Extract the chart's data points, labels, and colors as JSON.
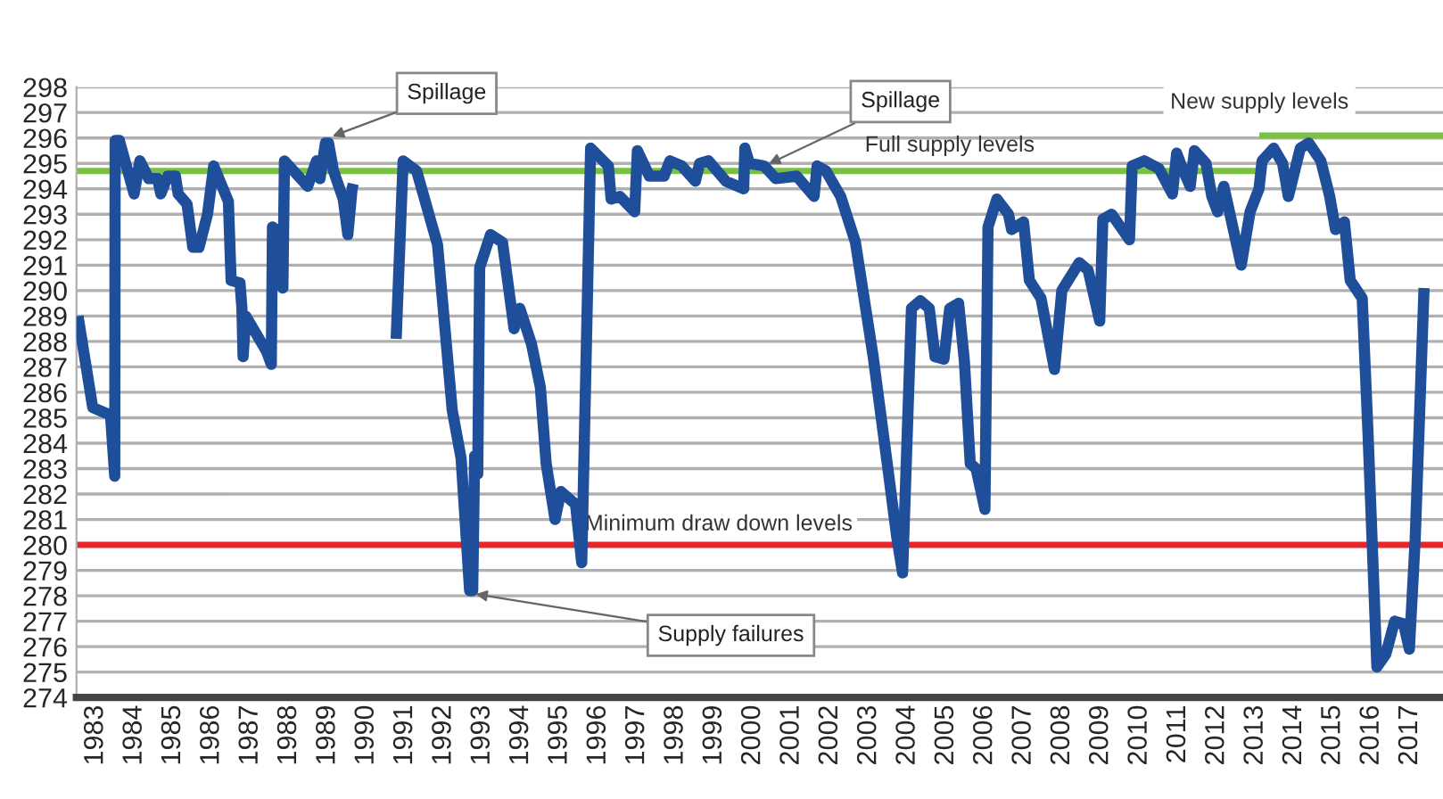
{
  "chart_data": {
    "type": "line",
    "xlim": [
      1982.5,
      2017.85
    ],
    "xticks": [
      1983,
      1984,
      1985,
      1986,
      1987,
      1988,
      1989,
      1990,
      1991,
      1992,
      1993,
      1994,
      1995,
      1996,
      1997,
      1998,
      1999,
      2000,
      2001,
      2002,
      2003,
      2004,
      2005,
      2006,
      2007,
      2008,
      2009,
      2010,
      2011,
      2012,
      2013,
      2014,
      2015,
      2016,
      2017
    ],
    "ylim": [
      274,
      298
    ],
    "yticks": [
      274,
      275,
      276,
      277,
      278,
      279,
      280,
      281,
      282,
      283,
      284,
      285,
      286,
      287,
      288,
      289,
      290,
      291,
      292,
      293,
      294,
      295,
      296,
      297,
      298
    ],
    "grid": "y",
    "legend": false,
    "marker": "none",
    "line_style": "solid",
    "series": [
      {
        "color": "#1f4e9a",
        "x": [
          1982.54,
          1982.92,
          1983.38,
          1983.49,
          1983.5,
          1983.61,
          1983.99,
          1984.14,
          1984.37,
          1984.6,
          1984.68,
          1984.86,
          1985.06,
          1985.13,
          1985.36,
          1985.51,
          1985.67,
          1985.89,
          1986.05,
          1986.43,
          1986.5,
          1986.73,
          1986.78,
          1986.81,
          1986.88,
          1987.42,
          1987.54,
          1987.57,
          1987.75,
          1987.84,
          1987.88,
          1988.48,
          1988.71,
          1988.8,
          1988.94,
          1989.02,
          1989.15,
          1989.4,
          1989.52,
          1989.63,
          1989.66,
          1990.2,
          1990.77,
          1990.95,
          1991.3,
          1991.84,
          1992.22,
          1992.45,
          1992.67,
          1992.75,
          1992.8,
          1992.88,
          1992.93,
          1993.21,
          1993.52,
          1993.82,
          1993.97,
          1994.27,
          1994.5,
          1994.65,
          1994.88,
          1995.03,
          1995.41,
          1995.57,
          1995.8,
          1996.26,
          1996.33,
          1996.56,
          1996.94,
          1997.01,
          1997.32,
          1997.7,
          1997.85,
          1998.16,
          1998.51,
          1998.62,
          1998.85,
          1999.3,
          1999.76,
          1999.79,
          1999.91,
          2000.29,
          2000.59,
          2001.13,
          2001.58,
          2001.66,
          2001.89,
          2002.27,
          2002.65,
          2003.11,
          2003.49,
          2003.72,
          2003.87,
          2004.1,
          2004.33,
          2004.56,
          2004.71,
          2004.94,
          2005.09,
          2005.32,
          2005.47,
          2005.62,
          2005.77,
          2006.0,
          2006.08,
          2006.31,
          2006.61,
          2006.69,
          2007.0,
          2007.15,
          2007.45,
          2007.8,
          2007.99,
          2008.44,
          2008.67,
          2008.97,
          2009.05,
          2009.28,
          2009.51,
          2009.74,
          2009.81,
          2010.12,
          2010.5,
          2010.85,
          2010.96,
          2011.11,
          2011.31,
          2011.42,
          2011.72,
          2011.87,
          2012.02,
          2012.18,
          2012.63,
          2012.86,
          2013.09,
          2013.17,
          2013.47,
          2013.7,
          2013.85,
          2014.16,
          2014.38,
          2014.69,
          2014.92,
          2015.07,
          2015.3,
          2015.45,
          2015.76,
          2015.91,
          2016.14,
          2016.37,
          2016.6,
          2016.83,
          2016.98,
          2017.13,
          2017.36
        ],
        "values": [
          289.0,
          285.4,
          285.1,
          282.7,
          295.9,
          295.9,
          293.8,
          295.1,
          294.4,
          294.4,
          293.8,
          294.5,
          294.5,
          293.8,
          293.4,
          291.7,
          291.7,
          293.0,
          294.9,
          293.5,
          290.4,
          290.3,
          289.3,
          287.4,
          289.0,
          287.6,
          287.1,
          292.5,
          292.3,
          290.1,
          295.1,
          294.1,
          295.1,
          294.4,
          295.8,
          295.8,
          294.7,
          293.6,
          292.2,
          294.0,
          294.2,
          null,
          288.1,
          295.1,
          294.7,
          291.8,
          285.3,
          283.4,
          278.2,
          278.2,
          283.5,
          282.8,
          290.9,
          292.2,
          291.9,
          288.5,
          289.3,
          287.9,
          286.2,
          283.2,
          281.0,
          282.1,
          281.6,
          279.3,
          295.6,
          294.9,
          293.6,
          293.7,
          293.1,
          295.5,
          294.5,
          294.5,
          295.1,
          294.9,
          294.3,
          295.0,
          295.1,
          294.3,
          294.0,
          295.6,
          295.0,
          294.9,
          294.4,
          294.5,
          293.7,
          294.9,
          294.7,
          293.7,
          291.9,
          287.4,
          283.0,
          280.3,
          278.9,
          289.3,
          289.6,
          289.3,
          287.4,
          287.3,
          289.3,
          289.5,
          287.2,
          283.2,
          283.0,
          281.4,
          292.5,
          293.6,
          293.0,
          292.4,
          292.7,
          290.4,
          289.7,
          286.9,
          290.0,
          291.1,
          290.8,
          288.8,
          292.8,
          293.0,
          292.5,
          292.0,
          294.9,
          295.1,
          294.8,
          293.8,
          295.4,
          294.8,
          294.1,
          295.5,
          295.0,
          293.7,
          293.1,
          294.1,
          291.0,
          293.1,
          294.0,
          295.1,
          295.6,
          295.0,
          293.7,
          295.6,
          295.8,
          295.1,
          293.7,
          292.4,
          292.7,
          290.4,
          289.7,
          284.4,
          275.2,
          275.7,
          277.0,
          276.9,
          275.9,
          280.2,
          290.1
        ]
      },
      {
        "name": "Full supply levels",
        "color": "#7ac143",
        "x": [
          1982.5,
          2013.1
        ],
        "values": [
          294.7,
          294.7
        ]
      },
      {
        "name": "New supply levels",
        "color": "#7ac143",
        "x": [
          2013.1,
          2017.85
        ],
        "values": [
          296.1,
          296.1
        ]
      }
    ],
    "ref_lines": [
      {
        "axis": "y",
        "value": 280,
        "label": "Minimum draw down levels",
        "color": "#e8262a",
        "line_style": "solid"
      }
    ],
    "annotations": [
      {
        "text": "Spillage",
        "x": 1989.0,
        "y": 296.0
      },
      {
        "text": "Spillage",
        "x": 2000.29,
        "y": 294.9
      },
      {
        "text": "Supply failures",
        "x": 1992.7,
        "y": 278.1
      }
    ]
  }
}
